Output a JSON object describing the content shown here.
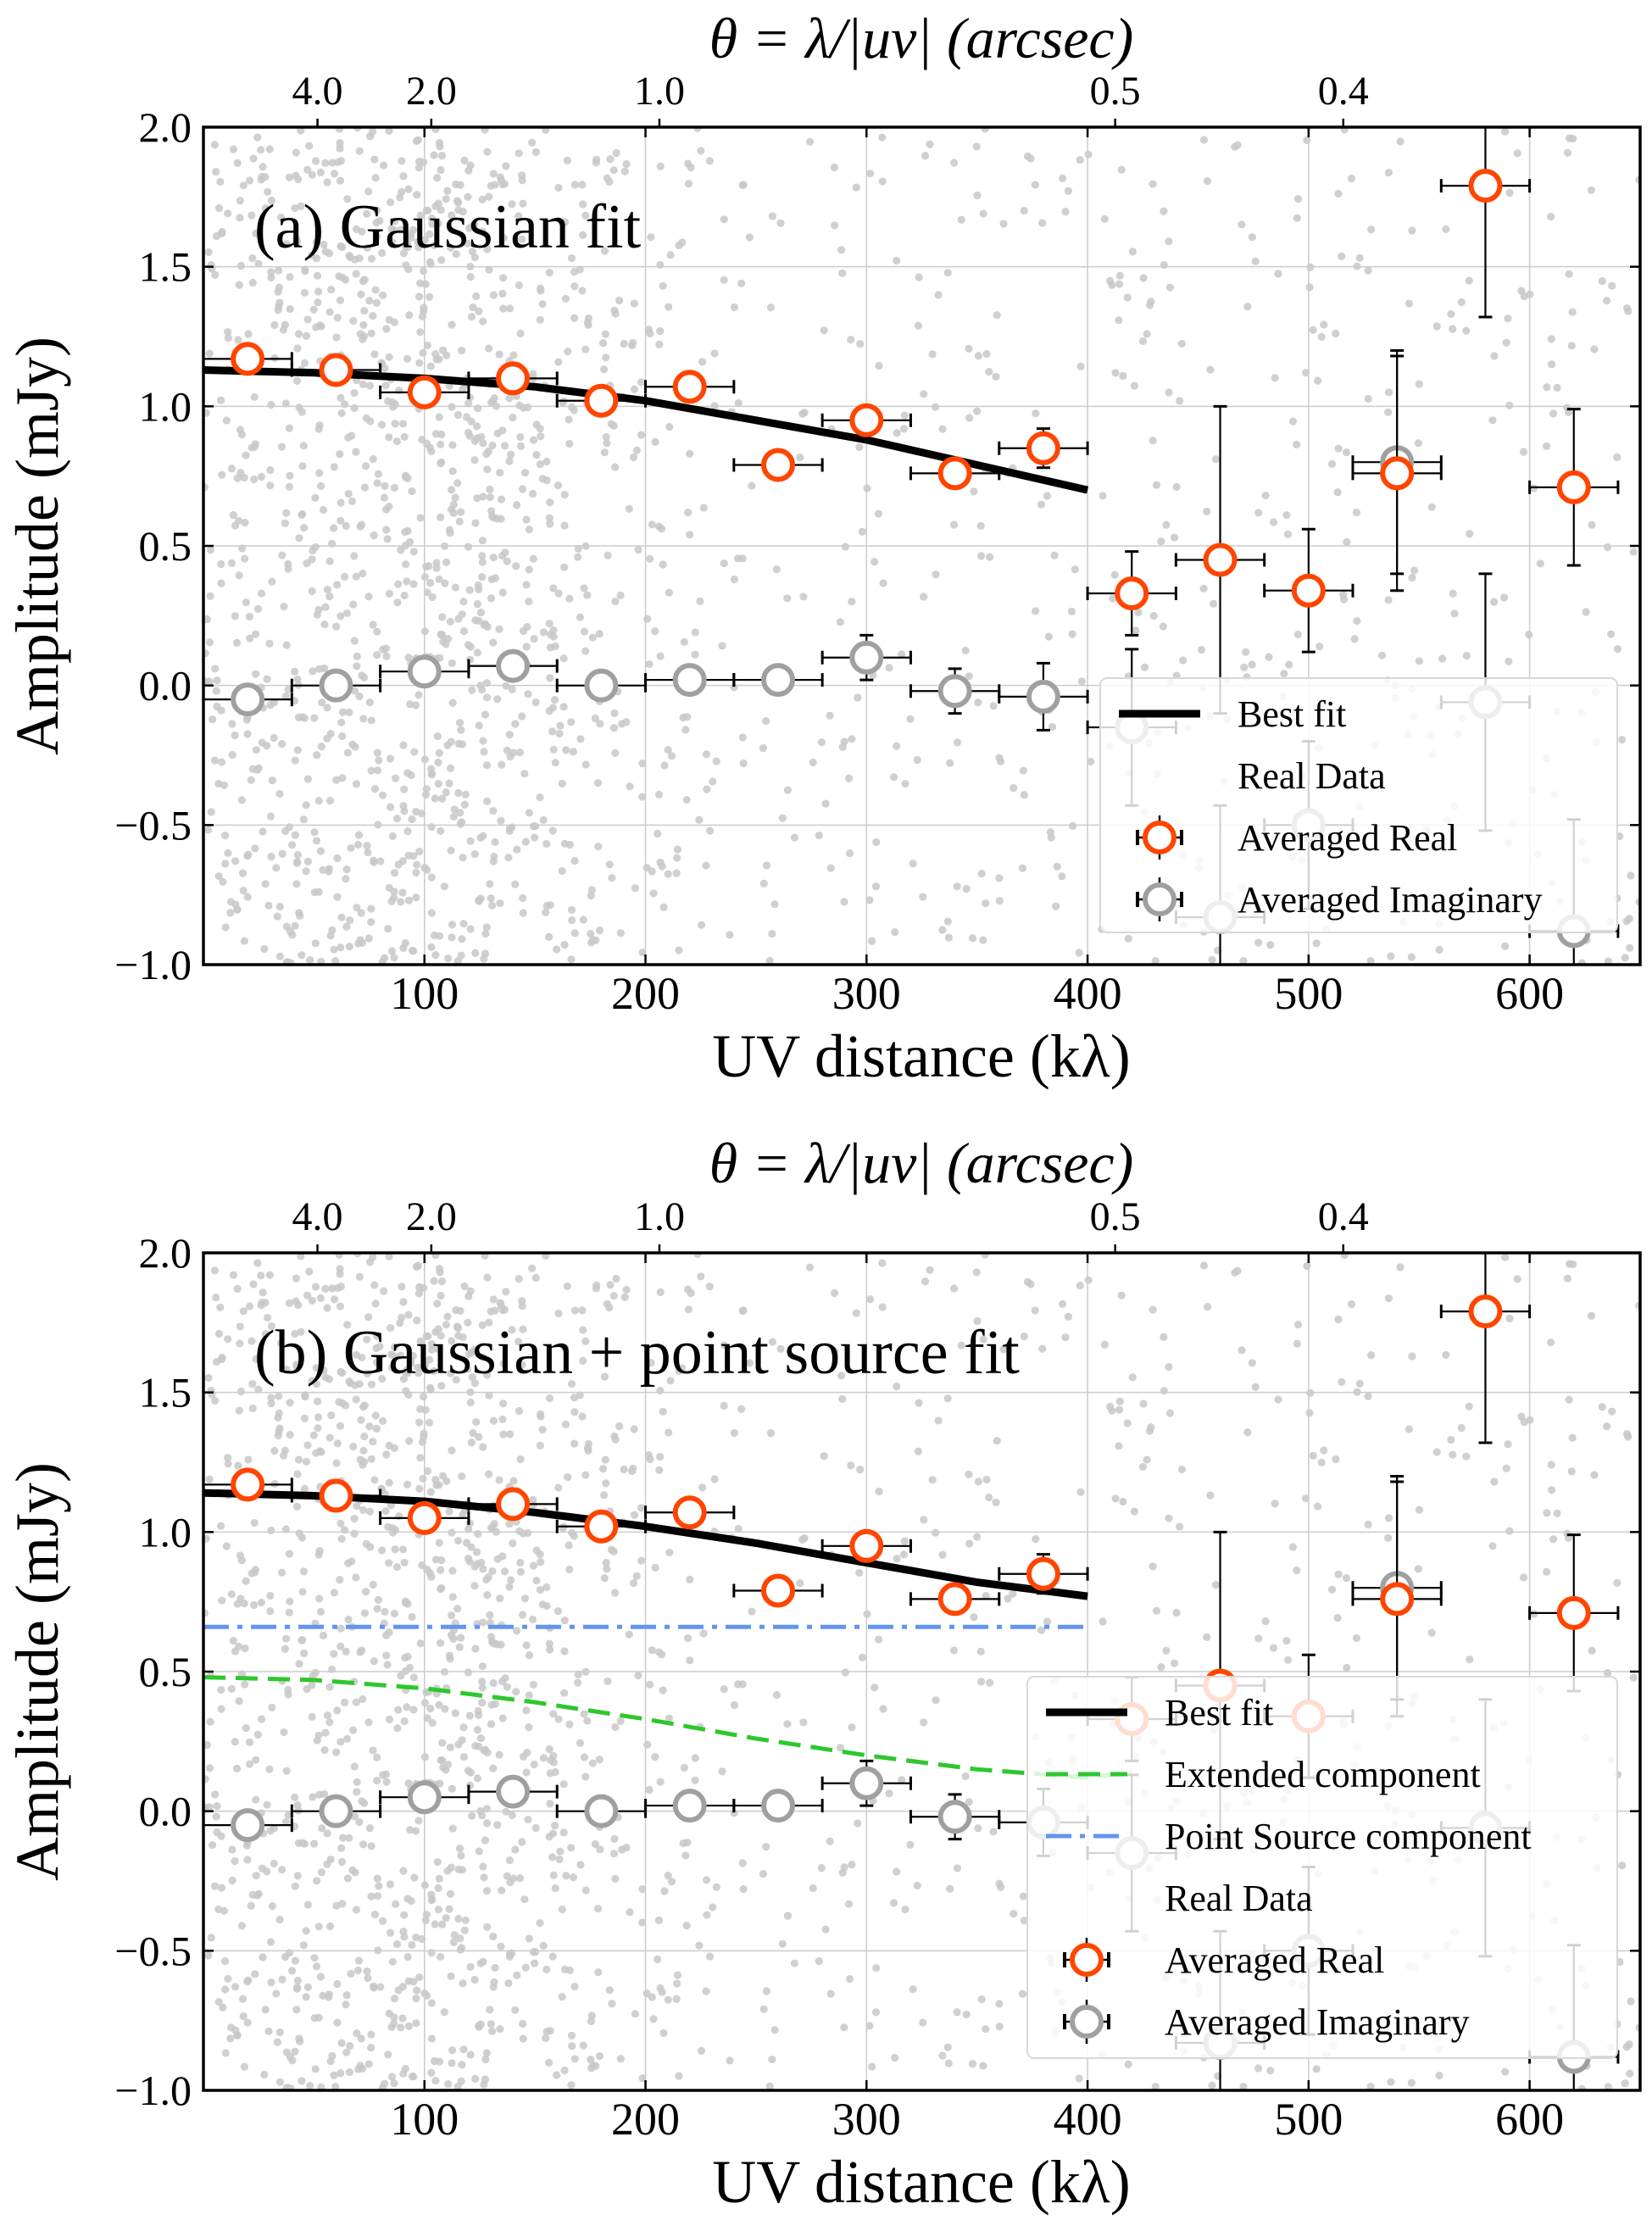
{
  "colors": {
    "real": "#ff4500",
    "imag": "#a0a0a0",
    "fit": "#000000",
    "extended": "#2ec72e",
    "point": "#6495ed",
    "scatter": "#c8c8c8",
    "grid": "#cccccc"
  },
  "chart_data": [
    {
      "type": "scatter",
      "panel_label": "(a) Gaussian fit",
      "xlabel": "UV distance (kλ)",
      "ylabel": "Amplitude (mJy)",
      "top_axis_label": "θ = λ/|uv| (arcsec)",
      "xlim": [
        0,
        650
      ],
      "ylim": [
        -1.0,
        2.0
      ],
      "grid": true,
      "legend_position": "lower-right",
      "x_ticks": [
        100,
        200,
        300,
        400,
        500,
        600
      ],
      "x_tick_labels": [
        "100",
        "200",
        "300",
        "400",
        "500",
        "600"
      ],
      "y_ticks": [
        -1.0,
        -0.5,
        0.0,
        0.5,
        1.0,
        1.5,
        2.0
      ],
      "y_tick_labels": [
        "−1.0",
        "−0.5",
        "0.0",
        "0.5",
        "1.0",
        "1.5",
        "2.0"
      ],
      "top_ticks": [
        51.6,
        103.1,
        206.3,
        412.5,
        515.7
      ],
      "top_tick_labels": [
        "4.0",
        "2.0",
        "1.0",
        "0.5",
        "0.4"
      ],
      "legend": [
        "Best fit",
        "Real Data",
        "Averaged Real",
        "Averaged Imaginary"
      ],
      "series": [
        {
          "name": "Best fit",
          "kind": "line",
          "x": [
            0,
            50,
            100,
            150,
            200,
            250,
            300,
            350,
            400
          ],
          "y": [
            1.13,
            1.12,
            1.1,
            1.07,
            1.02,
            0.95,
            0.88,
            0.79,
            0.7
          ]
        },
        {
          "name": "Averaged Real",
          "kind": "errorbar",
          "x": [
            20,
            60,
            100,
            140,
            180,
            220,
            260,
            300,
            340,
            380,
            420,
            460,
            500,
            540,
            580,
            620
          ],
          "y": [
            1.17,
            1.13,
            1.05,
            1.1,
            1.02,
            1.07,
            0.79,
            0.95,
            0.76,
            0.85,
            0.33,
            0.45,
            0.34,
            0.76,
            1.79,
            0.71
          ],
          "yerr": [
            0.03,
            0.03,
            0.03,
            0.03,
            0.04,
            0.04,
            0.04,
            0.05,
            0.05,
            0.07,
            0.15,
            0.55,
            0.22,
            0.42,
            0.47,
            0.28
          ],
          "xerr": 20
        },
        {
          "name": "Averaged Imaginary",
          "kind": "errorbar",
          "x": [
            20,
            60,
            100,
            140,
            180,
            220,
            260,
            300,
            340,
            380,
            420,
            460,
            500,
            540,
            580,
            620
          ],
          "y": [
            -0.05,
            0.0,
            0.05,
            0.07,
            0.0,
            0.02,
            0.02,
            0.1,
            -0.02,
            -0.04,
            -0.15,
            -0.83,
            -0.5,
            0.8,
            -0.06,
            -0.88
          ],
          "yerr": [
            0.03,
            0.03,
            0.03,
            0.03,
            0.04,
            0.04,
            0.04,
            0.08,
            0.08,
            0.12,
            0.28,
            0.4,
            0.3,
            0.4,
            0.46,
            0.4
          ],
          "xerr": 20
        }
      ]
    },
    {
      "type": "scatter",
      "panel_label": "(b) Gaussian + point source fit",
      "xlabel": "UV distance (kλ)",
      "ylabel": "Amplitude (mJy)",
      "top_axis_label": "θ = λ/|uv| (arcsec)",
      "xlim": [
        0,
        650
      ],
      "ylim": [
        -1.0,
        2.0
      ],
      "grid": true,
      "legend_position": "lower-right",
      "x_ticks": [
        100,
        200,
        300,
        400,
        500,
        600
      ],
      "x_tick_labels": [
        "100",
        "200",
        "300",
        "400",
        "500",
        "600"
      ],
      "y_ticks": [
        -1.0,
        -0.5,
        0.0,
        0.5,
        1.0,
        1.5,
        2.0
      ],
      "y_tick_labels": [
        "−1.0",
        "−0.5",
        "0.0",
        "0.5",
        "1.0",
        "1.5",
        "2.0"
      ],
      "top_ticks": [
        51.6,
        103.1,
        206.3,
        412.5,
        515.7
      ],
      "top_tick_labels": [
        "4.0",
        "2.0",
        "1.0",
        "0.5",
        "0.4"
      ],
      "legend": [
        "Best fit",
        "Extended component",
        "Point Source component",
        "Real Data",
        "Averaged Real",
        "Averaged Imaginary"
      ],
      "series": [
        {
          "name": "Best fit",
          "kind": "line",
          "x": [
            0,
            50,
            100,
            150,
            200,
            250,
            300,
            350,
            400
          ],
          "y": [
            1.14,
            1.13,
            1.11,
            1.07,
            1.02,
            0.96,
            0.89,
            0.82,
            0.77
          ]
        },
        {
          "name": "Extended component",
          "kind": "dashed",
          "x": [
            0,
            50,
            100,
            150,
            200,
            250,
            300,
            350,
            400,
            420
          ],
          "y": [
            0.48,
            0.47,
            0.44,
            0.39,
            0.33,
            0.26,
            0.2,
            0.15,
            0.12,
            0.14
          ]
        },
        {
          "name": "Point Source component",
          "kind": "dashdot",
          "x": [
            0,
            400
          ],
          "y": [
            0.66,
            0.66
          ]
        },
        {
          "name": "Averaged Real",
          "kind": "errorbar",
          "x": [
            20,
            60,
            100,
            140,
            180,
            220,
            260,
            300,
            340,
            380,
            420,
            460,
            500,
            540,
            580,
            620
          ],
          "y": [
            1.17,
            1.13,
            1.05,
            1.1,
            1.02,
            1.07,
            0.79,
            0.95,
            0.76,
            0.85,
            0.33,
            0.45,
            0.34,
            0.76,
            1.79,
            0.71
          ],
          "yerr": [
            0.03,
            0.03,
            0.03,
            0.03,
            0.04,
            0.04,
            0.04,
            0.05,
            0.05,
            0.07,
            0.15,
            0.55,
            0.22,
            0.42,
            0.47,
            0.28
          ],
          "xerr": 20
        },
        {
          "name": "Averaged Imaginary",
          "kind": "errorbar",
          "x": [
            20,
            60,
            100,
            140,
            180,
            220,
            260,
            300,
            340,
            380,
            420,
            460,
            500,
            540,
            580,
            620
          ],
          "y": [
            -0.05,
            0.0,
            0.05,
            0.07,
            0.0,
            0.02,
            0.02,
            0.1,
            -0.02,
            -0.04,
            -0.15,
            -0.83,
            -0.5,
            0.8,
            -0.06,
            -0.88
          ],
          "yerr": [
            0.03,
            0.03,
            0.03,
            0.03,
            0.04,
            0.04,
            0.04,
            0.08,
            0.08,
            0.12,
            0.28,
            0.4,
            0.3,
            0.4,
            0.46,
            0.4
          ],
          "xerr": 20
        }
      ]
    }
  ]
}
